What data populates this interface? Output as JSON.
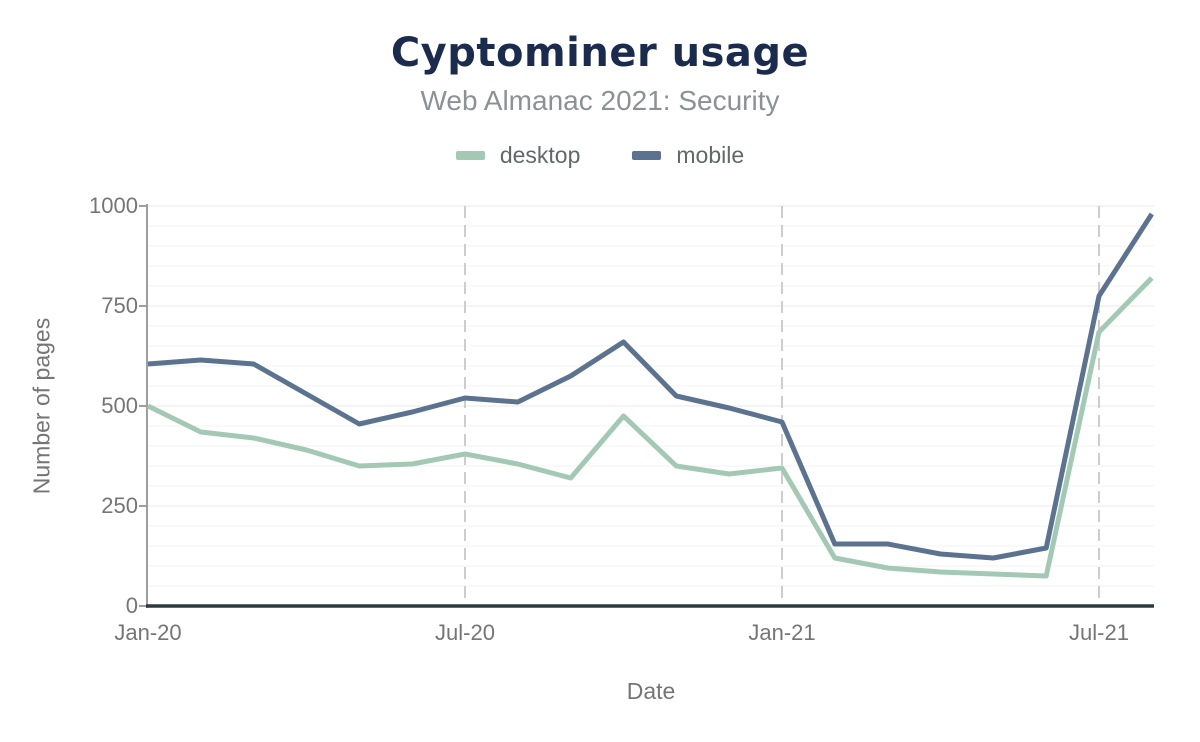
{
  "header": {
    "title": "Cyptominer usage",
    "subtitle": "Web Almanac 2021: Security"
  },
  "chart_data": {
    "type": "line",
    "title": "Cyptominer usage",
    "subtitle": "Web Almanac 2021: Security",
    "xlabel": "Date",
    "ylabel": "Number of pages",
    "x": [
      "Jan-20",
      "Feb-20",
      "Mar-20",
      "Apr-20",
      "May-20",
      "Jun-20",
      "Jul-20",
      "Aug-20",
      "Sep-20",
      "Oct-20",
      "Nov-20",
      "Dec-20",
      "Jan-21",
      "Feb-21",
      "Mar-21",
      "Apr-21",
      "May-21",
      "Jun-21",
      "Jul-21",
      "Aug-21"
    ],
    "x_tick_labels": [
      "Jan-20",
      "Jul-20",
      "Jan-21",
      "Jul-21"
    ],
    "x_tick_indices": [
      0,
      6,
      12,
      18
    ],
    "y_ticks": [
      0,
      250,
      500,
      750,
      1000
    ],
    "ylim": [
      0,
      1000
    ],
    "grid": {
      "horizontal_minor_step": 50,
      "horizontal_major_step": 250,
      "vertical_dashed_at_x_ticks": true
    },
    "legend_position": "top",
    "series": [
      {
        "name": "desktop",
        "color": "#a3c9b4",
        "values": [
          500,
          435,
          420,
          390,
          350,
          355,
          380,
          355,
          320,
          475,
          350,
          330,
          345,
          120,
          95,
          85,
          80,
          75,
          685,
          820
        ]
      },
      {
        "name": "mobile",
        "color": "#5c7390",
        "values": [
          605,
          615,
          605,
          530,
          455,
          485,
          520,
          510,
          575,
          660,
          525,
          495,
          460,
          155,
          155,
          130,
          120,
          145,
          775,
          980
        ]
      }
    ],
    "colors": {
      "title": "#1b2b4d",
      "subtitle": "#8d9094",
      "axis_text": "#757575",
      "x_axis_line": "#2d3a43",
      "y_axis_line": "#9e9e9e",
      "v_gridline": "#cdcdcd",
      "h_gridline_major": "#e8e8e8",
      "h_gridline_minor": "#f3f3f3"
    }
  }
}
